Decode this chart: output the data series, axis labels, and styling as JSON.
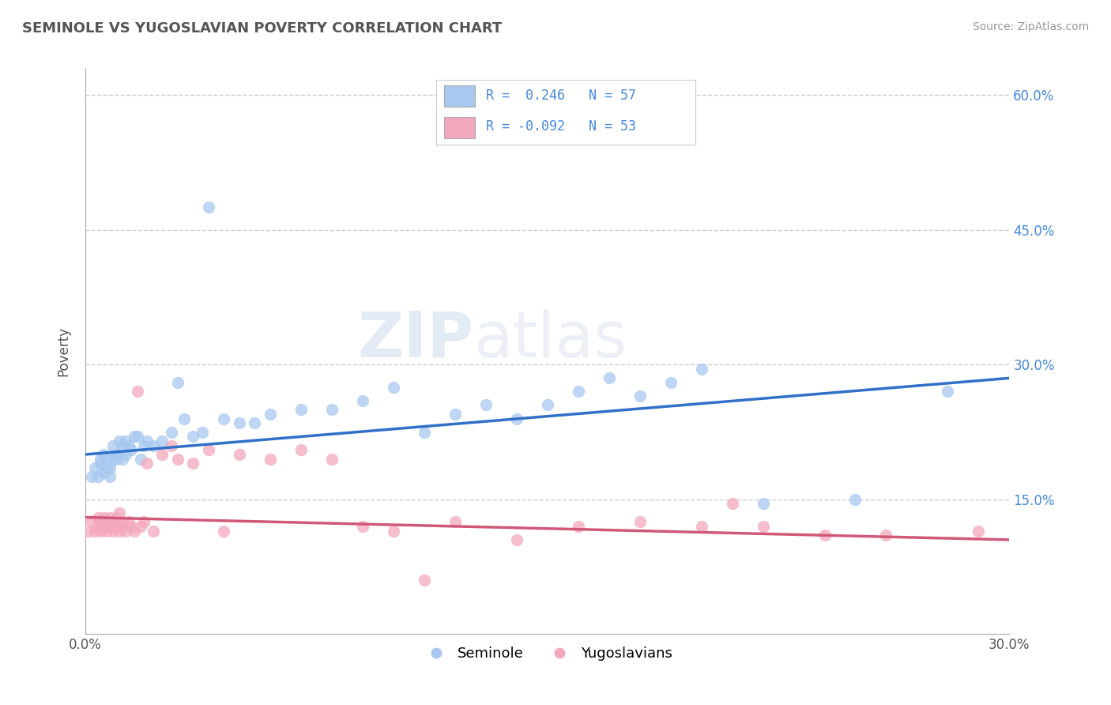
{
  "title": "SEMINOLE VS YUGOSLAVIAN POVERTY CORRELATION CHART",
  "source_text": "Source: ZipAtlas.com",
  "ylabel": "Poverty",
  "xmin": 0.0,
  "xmax": 0.3,
  "ymin": 0.0,
  "ymax": 0.63,
  "seminole_R": 0.246,
  "seminole_N": 57,
  "yugoslavian_R": -0.092,
  "yugoslavian_N": 53,
  "seminole_color": "#A8C8F0",
  "yugoslavian_color": "#F4A8BC",
  "seminole_line_color": "#3070C8",
  "yugoslavian_line_color": "#D05878",
  "legend_text_color": "#4488DD",
  "seminole_scatter_x": [
    0.002,
    0.003,
    0.004,
    0.005,
    0.005,
    0.006,
    0.006,
    0.007,
    0.007,
    0.008,
    0.008,
    0.009,
    0.009,
    0.01,
    0.01,
    0.011,
    0.011,
    0.012,
    0.012,
    0.013,
    0.013,
    0.014,
    0.015,
    0.016,
    0.017,
    0.018,
    0.019,
    0.02,
    0.022,
    0.025,
    0.028,
    0.03,
    0.032,
    0.035,
    0.038,
    0.04,
    0.045,
    0.05,
    0.055,
    0.06,
    0.07,
    0.08,
    0.09,
    0.1,
    0.11,
    0.12,
    0.13,
    0.14,
    0.15,
    0.16,
    0.17,
    0.18,
    0.19,
    0.2,
    0.22,
    0.25,
    0.28
  ],
  "seminole_scatter_y": [
    0.175,
    0.185,
    0.175,
    0.19,
    0.195,
    0.18,
    0.2,
    0.185,
    0.195,
    0.175,
    0.185,
    0.195,
    0.21,
    0.2,
    0.195,
    0.215,
    0.2,
    0.195,
    0.21,
    0.215,
    0.2,
    0.21,
    0.205,
    0.22,
    0.22,
    0.195,
    0.21,
    0.215,
    0.21,
    0.215,
    0.225,
    0.28,
    0.24,
    0.22,
    0.225,
    0.475,
    0.24,
    0.235,
    0.235,
    0.245,
    0.25,
    0.25,
    0.26,
    0.275,
    0.225,
    0.245,
    0.255,
    0.24,
    0.255,
    0.27,
    0.285,
    0.265,
    0.28,
    0.295,
    0.145,
    0.15,
    0.27
  ],
  "yugoslavian_scatter_x": [
    0.001,
    0.002,
    0.003,
    0.004,
    0.004,
    0.005,
    0.005,
    0.006,
    0.006,
    0.007,
    0.007,
    0.008,
    0.008,
    0.009,
    0.009,
    0.01,
    0.01,
    0.011,
    0.011,
    0.012,
    0.012,
    0.013,
    0.014,
    0.015,
    0.016,
    0.017,
    0.018,
    0.019,
    0.02,
    0.022,
    0.025,
    0.028,
    0.03,
    0.035,
    0.04,
    0.045,
    0.05,
    0.06,
    0.07,
    0.08,
    0.09,
    0.1,
    0.11,
    0.12,
    0.14,
    0.16,
    0.18,
    0.2,
    0.21,
    0.22,
    0.24,
    0.26,
    0.29
  ],
  "yugoslavian_scatter_y": [
    0.115,
    0.125,
    0.115,
    0.13,
    0.12,
    0.125,
    0.115,
    0.13,
    0.12,
    0.125,
    0.115,
    0.13,
    0.12,
    0.125,
    0.115,
    0.13,
    0.12,
    0.135,
    0.115,
    0.125,
    0.12,
    0.115,
    0.125,
    0.12,
    0.115,
    0.27,
    0.12,
    0.125,
    0.19,
    0.115,
    0.2,
    0.21,
    0.195,
    0.19,
    0.205,
    0.115,
    0.2,
    0.195,
    0.205,
    0.195,
    0.12,
    0.115,
    0.06,
    0.125,
    0.105,
    0.12,
    0.125,
    0.12,
    0.145,
    0.12,
    0.11,
    0.11,
    0.115
  ],
  "watermark_zip": "ZIP",
  "watermark_atlas": "atlas",
  "background_color": "#FFFFFF",
  "grid_color": "#CCCCCC"
}
